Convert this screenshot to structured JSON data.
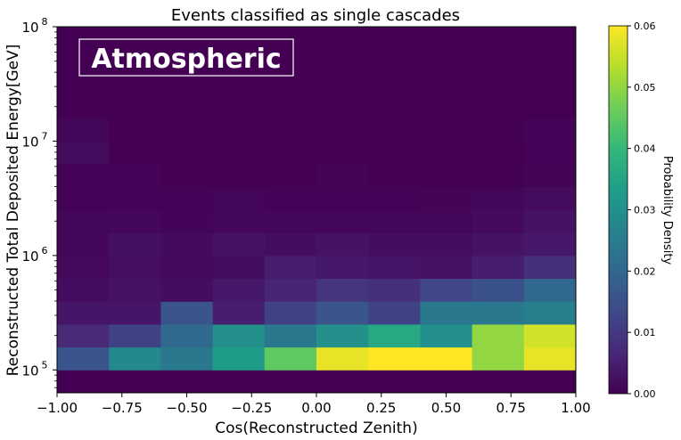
{
  "chart_data": {
    "type": "heatmap",
    "title": "Events classified as single cascades",
    "xlabel": "Cos(Reconstructed Zenith)",
    "ylabel": "Reconstructed Total Deposited Energy[GeV]",
    "annotation": "Atmospheric",
    "colorbar_label": "Probability Density",
    "xlim": [
      -1.0,
      1.0
    ],
    "ylim_log10": [
      4.8,
      8.0
    ],
    "y_scale": "log",
    "grid": false,
    "x_edges": [
      -1.0,
      -0.8,
      -0.6,
      -0.4,
      -0.2,
      0.0,
      0.2,
      0.4,
      0.6,
      0.8,
      1.0
    ],
    "y_edges_log10": [
      4.8,
      5.0,
      5.2,
      5.4,
      5.6,
      5.8,
      6.0,
      6.2,
      6.4,
      6.6,
      6.8,
      7.0,
      7.2,
      7.4,
      7.6,
      7.8,
      8.0
    ],
    "values": [
      [
        0.0,
        0.0,
        0.0,
        0.0,
        0.0,
        0.0,
        0.0,
        0.0,
        0.0,
        0.0
      ],
      [
        0.016,
        0.028,
        0.024,
        0.033,
        0.045,
        0.058,
        0.06,
        0.06,
        0.05,
        0.058
      ],
      [
        0.007,
        0.012,
        0.02,
        0.03,
        0.024,
        0.03,
        0.036,
        0.03,
        0.05,
        0.056
      ],
      [
        0.0035,
        0.0035,
        0.016,
        0.005,
        0.012,
        0.016,
        0.012,
        0.024,
        0.024,
        0.026
      ],
      [
        0.002,
        0.003,
        0.002,
        0.004,
        0.006,
        0.009,
        0.008,
        0.013,
        0.015,
        0.02
      ],
      [
        0.0012,
        0.0022,
        0.0012,
        0.002,
        0.0048,
        0.004,
        0.0035,
        0.003,
        0.005,
        0.008
      ],
      [
        0.001,
        0.0025,
        0.0015,
        0.003,
        0.002,
        0.003,
        0.002,
        0.002,
        0.003,
        0.004
      ],
      [
        0.0008,
        0.001,
        0.0005,
        0.001,
        0.0008,
        0.0008,
        0.0008,
        0.0008,
        0.0015,
        0.003
      ],
      [
        0.0004,
        0.0004,
        0.0004,
        0.0008,
        0.0004,
        0.0004,
        0.0004,
        0.0006,
        0.0008,
        0.0018
      ],
      [
        0.0004,
        0.0004,
        0.0,
        0.0,
        0.0,
        0.0006,
        0.0,
        0.0,
        0.0,
        0.0006
      ],
      [
        0.0018,
        0.0,
        0.0,
        0.0,
        0.0,
        0.0,
        0.0,
        0.0,
        0.0,
        0.0004
      ],
      [
        0.0008,
        0.0,
        0.0,
        0.0,
        0.0,
        0.0,
        0.0,
        0.0,
        0.0,
        0.0005
      ],
      [
        0.0,
        0.0,
        0.0,
        0.0,
        0.0,
        0.0,
        0.0,
        0.0,
        0.0,
        0.0
      ],
      [
        0.0,
        0.0,
        0.0,
        0.0,
        0.0,
        0.0,
        0.0,
        0.0,
        0.0,
        0.0
      ],
      [
        0.0,
        0.0,
        0.0,
        0.0,
        0.0,
        0.0,
        0.0,
        0.0,
        0.0,
        0.0
      ],
      [
        0.0,
        0.0,
        0.0,
        0.0,
        0.0,
        0.0,
        0.0,
        0.0,
        0.0,
        0.0
      ]
    ],
    "x_ticks": [
      -1.0,
      -0.75,
      -0.5,
      -0.25,
      0.0,
      0.25,
      0.5,
      0.75,
      1.0
    ],
    "x_tick_labels": [
      "−1.00",
      "−0.75",
      "−0.50",
      "−0.25",
      "0.00",
      "0.25",
      "0.50",
      "0.75",
      "1.00"
    ],
    "y_ticks": [
      {
        "exp": 5,
        "label": "10",
        "sup": "5"
      },
      {
        "exp": 6,
        "label": "10",
        "sup": "6"
      },
      {
        "exp": 7,
        "label": "10",
        "sup": "7"
      },
      {
        "exp": 8,
        "label": "10",
        "sup": "8"
      }
    ],
    "colorbar": {
      "min": 0.0,
      "max": 0.06,
      "ticks": [
        0.0,
        0.01,
        0.02,
        0.03,
        0.04,
        0.05,
        0.06
      ],
      "tick_labels": [
        "0.00",
        "0.01",
        "0.02",
        "0.03",
        "0.04",
        "0.05",
        "0.06"
      ],
      "colormap": "viridis",
      "colormap_stops": [
        "#440154",
        "#482878",
        "#3e4989",
        "#31688e",
        "#26828e",
        "#1f9e89",
        "#35b779",
        "#6ece58",
        "#b5de2b",
        "#fde725"
      ]
    }
  }
}
